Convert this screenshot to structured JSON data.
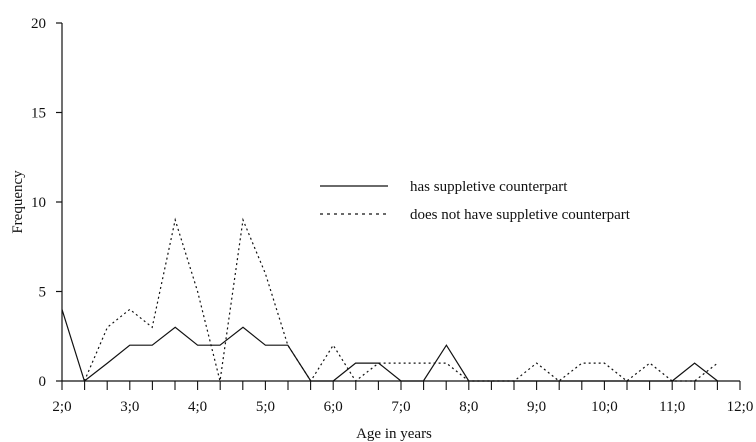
{
  "chart_data": {
    "type": "line",
    "xlabel": "Age in years",
    "ylabel": "Frequency",
    "ylim": [
      0,
      20
    ],
    "xlim": [
      2.0,
      12.0
    ],
    "y_ticks": [
      "0",
      "5",
      "10",
      "15",
      "20"
    ],
    "x_ticks": [
      "2;0",
      "3;0",
      "4;0",
      "5;0",
      "6;0",
      "7;0",
      "8;0",
      "9;0",
      "10;0",
      "11;0",
      "12;0"
    ],
    "x_tick_values": [
      2,
      3,
      4,
      5,
      6,
      7,
      8,
      9,
      10,
      11,
      12
    ],
    "legend_position": "center-right",
    "series": [
      {
        "name": "has suppletive counterpart",
        "style": "solid",
        "x": [
          2.0,
          2.33,
          2.67,
          3.0,
          3.33,
          3.67,
          4.0,
          4.33,
          4.67,
          5.0,
          5.33,
          5.67,
          6.0,
          6.33,
          6.67,
          7.0,
          7.33,
          7.67,
          8.0,
          8.33,
          8.67,
          9.0,
          9.33,
          9.67,
          10.0,
          10.33,
          10.67,
          11.0,
          11.33,
          11.67
        ],
        "y": [
          4,
          0,
          1,
          2,
          2,
          3,
          2,
          2,
          3,
          2,
          2,
          0,
          0,
          1,
          1,
          0,
          0,
          2,
          0,
          0,
          0,
          0,
          0,
          0,
          0,
          0,
          0,
          0,
          1,
          0
        ]
      },
      {
        "name": "does not have suppletive counterpart",
        "style": "dotted",
        "x": [
          2.33,
          2.67,
          3.0,
          3.33,
          3.67,
          4.0,
          4.33,
          4.67,
          5.0,
          5.33,
          5.67,
          6.0,
          6.33,
          6.67,
          7.0,
          7.33,
          7.67,
          8.0,
          8.33,
          8.67,
          9.0,
          9.33,
          9.67,
          10.0,
          10.33,
          10.67,
          11.0,
          11.33,
          11.67
        ],
        "y": [
          0,
          3,
          4,
          3,
          9,
          5,
          0,
          9,
          6,
          2,
          0,
          2,
          0,
          1,
          1,
          1,
          1,
          0,
          0,
          0,
          1,
          0,
          1,
          1,
          0,
          1,
          0,
          0,
          1
        ]
      }
    ]
  }
}
